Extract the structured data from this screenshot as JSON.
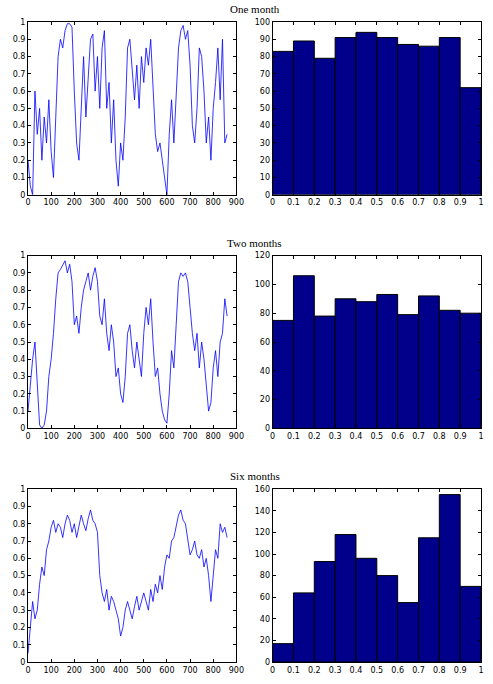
{
  "chart_data": [
    {
      "type": "line",
      "title": "One month",
      "x": [
        0,
        10,
        20,
        30,
        40,
        50,
        60,
        70,
        80,
        90,
        100,
        110,
        120,
        130,
        140,
        150,
        160,
        170,
        180,
        190,
        200,
        210,
        220,
        230,
        240,
        250,
        260,
        270,
        280,
        290,
        300,
        310,
        320,
        330,
        340,
        350,
        360,
        370,
        380,
        390,
        400,
        410,
        420,
        430,
        440,
        450,
        460,
        470,
        480,
        490,
        500,
        510,
        520,
        530,
        540,
        550,
        560,
        570,
        580,
        590,
        600,
        610,
        620,
        630,
        640,
        650,
        660,
        670,
        680,
        690,
        700,
        710,
        720,
        730,
        740,
        750,
        760,
        770,
        780,
        790,
        800,
        810,
        820,
        830,
        840,
        850,
        860
      ],
      "values": [
        0.2,
        0.05,
        0.0,
        0.6,
        0.35,
        0.5,
        0.2,
        0.45,
        0.3,
        0.55,
        0.25,
        0.1,
        0.45,
        0.8,
        0.9,
        0.85,
        0.95,
        0.99,
        0.99,
        0.97,
        0.6,
        0.3,
        0.2,
        0.55,
        0.8,
        0.45,
        0.7,
        0.9,
        0.93,
        0.6,
        0.8,
        0.5,
        0.85,
        0.95,
        0.5,
        0.65,
        0.3,
        0.55,
        0.2,
        0.05,
        0.3,
        0.2,
        0.45,
        0.85,
        0.9,
        0.7,
        0.55,
        0.75,
        0.5,
        0.8,
        0.65,
        0.85,
        0.75,
        0.9,
        0.6,
        0.35,
        0.25,
        0.3,
        0.2,
        0.1,
        0.0,
        0.35,
        0.55,
        0.3,
        0.6,
        0.85,
        0.95,
        0.98,
        0.9,
        0.95,
        0.75,
        0.4,
        0.3,
        0.5,
        0.85,
        0.8,
        0.6,
        0.3,
        0.45,
        0.2,
        0.5,
        0.65,
        0.85,
        0.55,
        0.9,
        0.3,
        0.35
      ],
      "color": "#0000ff",
      "xlim": [
        0,
        900
      ],
      "xticks": [
        0,
        100,
        200,
        300,
        400,
        500,
        600,
        700,
        800,
        900
      ],
      "ylim": [
        0,
        1
      ],
      "yticks": [
        0,
        0.1,
        0.2,
        0.3,
        0.4,
        0.5,
        0.6,
        0.7,
        0.8,
        0.9,
        1
      ]
    },
    {
      "type": "histogram",
      "bins": [
        0,
        0.1,
        0.2,
        0.3,
        0.4,
        0.5,
        0.6,
        0.7,
        0.8,
        0.9,
        1
      ],
      "values": [
        83,
        89,
        79,
        91,
        94,
        91,
        87,
        86,
        91,
        62
      ],
      "color": "#00008b",
      "xlim": [
        0,
        1
      ],
      "xticks": [
        0,
        0.1,
        0.2,
        0.3,
        0.4,
        0.5,
        0.6,
        0.7,
        0.8,
        0.9,
        1
      ],
      "ylim": [
        0,
        100
      ],
      "yticks": [
        0,
        10,
        20,
        30,
        40,
        50,
        60,
        70,
        80,
        90,
        100
      ]
    },
    {
      "type": "line",
      "title": "Two months",
      "x": [
        0,
        10,
        20,
        30,
        40,
        50,
        60,
        70,
        80,
        90,
        100,
        110,
        120,
        130,
        140,
        150,
        160,
        170,
        180,
        190,
        200,
        210,
        220,
        230,
        240,
        250,
        260,
        270,
        280,
        290,
        300,
        310,
        320,
        330,
        340,
        350,
        360,
        370,
        380,
        390,
        400,
        410,
        420,
        430,
        440,
        450,
        460,
        470,
        480,
        490,
        500,
        510,
        520,
        530,
        540,
        550,
        560,
        570,
        580,
        590,
        600,
        610,
        620,
        630,
        640,
        650,
        660,
        670,
        680,
        690,
        700,
        710,
        720,
        730,
        740,
        750,
        760,
        770,
        780,
        790,
        800,
        810,
        820,
        830,
        840,
        850,
        860
      ],
      "values": [
        0.1,
        0.25,
        0.4,
        0.5,
        0.25,
        0.02,
        0.0,
        0.02,
        0.1,
        0.3,
        0.4,
        0.55,
        0.75,
        0.9,
        0.92,
        0.95,
        0.97,
        0.9,
        0.95,
        0.85,
        0.6,
        0.65,
        0.55,
        0.7,
        0.8,
        0.85,
        0.9,
        0.8,
        0.88,
        0.93,
        0.85,
        0.65,
        0.6,
        0.75,
        0.55,
        0.45,
        0.6,
        0.5,
        0.3,
        0.35,
        0.2,
        0.15,
        0.3,
        0.55,
        0.6,
        0.45,
        0.35,
        0.5,
        0.4,
        0.3,
        0.55,
        0.7,
        0.6,
        0.75,
        0.5,
        0.3,
        0.35,
        0.2,
        0.1,
        0.05,
        0.03,
        0.2,
        0.45,
        0.35,
        0.6,
        0.85,
        0.9,
        0.88,
        0.9,
        0.85,
        0.7,
        0.55,
        0.45,
        0.55,
        0.35,
        0.5,
        0.4,
        0.25,
        0.1,
        0.15,
        0.35,
        0.45,
        0.3,
        0.5,
        0.55,
        0.75,
        0.65
      ],
      "color": "#0000ff",
      "xlim": [
        0,
        900
      ],
      "xticks": [
        0,
        100,
        200,
        300,
        400,
        500,
        600,
        700,
        800,
        900
      ],
      "ylim": [
        0,
        1
      ],
      "yticks": [
        0,
        0.1,
        0.2,
        0.3,
        0.4,
        0.5,
        0.6,
        0.7,
        0.8,
        0.9,
        1
      ]
    },
    {
      "type": "histogram",
      "bins": [
        0,
        0.1,
        0.2,
        0.3,
        0.4,
        0.5,
        0.6,
        0.7,
        0.8,
        0.9,
        1
      ],
      "values": [
        75,
        106,
        78,
        90,
        88,
        93,
        79,
        92,
        82,
        80
      ],
      "color": "#00008b",
      "xlim": [
        0,
        1
      ],
      "xticks": [
        0,
        0.1,
        0.2,
        0.3,
        0.4,
        0.5,
        0.6,
        0.7,
        0.8,
        0.9,
        1
      ],
      "ylim": [
        0,
        120
      ],
      "yticks": [
        0,
        20,
        40,
        60,
        80,
        100,
        120
      ]
    },
    {
      "type": "line",
      "title": "Six months",
      "x": [
        0,
        10,
        20,
        30,
        40,
        50,
        60,
        70,
        80,
        90,
        100,
        110,
        120,
        130,
        140,
        150,
        160,
        170,
        180,
        190,
        200,
        210,
        220,
        230,
        240,
        250,
        260,
        270,
        280,
        290,
        300,
        310,
        320,
        330,
        340,
        350,
        360,
        370,
        380,
        390,
        400,
        410,
        420,
        430,
        440,
        450,
        460,
        470,
        480,
        490,
        500,
        510,
        520,
        530,
        540,
        550,
        560,
        570,
        580,
        590,
        600,
        610,
        620,
        630,
        640,
        650,
        660,
        670,
        680,
        690,
        700,
        710,
        720,
        730,
        740,
        750,
        760,
        770,
        780,
        790,
        800,
        810,
        820,
        830,
        840,
        850,
        860
      ],
      "values": [
        0.05,
        0.2,
        0.35,
        0.25,
        0.3,
        0.45,
        0.55,
        0.5,
        0.65,
        0.7,
        0.78,
        0.82,
        0.75,
        0.8,
        0.78,
        0.72,
        0.8,
        0.85,
        0.82,
        0.75,
        0.8,
        0.72,
        0.78,
        0.85,
        0.8,
        0.76,
        0.83,
        0.88,
        0.82,
        0.8,
        0.75,
        0.5,
        0.4,
        0.35,
        0.42,
        0.3,
        0.38,
        0.35,
        0.3,
        0.25,
        0.15,
        0.2,
        0.3,
        0.35,
        0.3,
        0.25,
        0.32,
        0.38,
        0.3,
        0.35,
        0.4,
        0.35,
        0.3,
        0.42,
        0.35,
        0.45,
        0.4,
        0.5,
        0.42,
        0.55,
        0.62,
        0.6,
        0.7,
        0.72,
        0.78,
        0.85,
        0.88,
        0.82,
        0.8,
        0.7,
        0.62,
        0.65,
        0.7,
        0.62,
        0.6,
        0.65,
        0.55,
        0.6,
        0.5,
        0.35,
        0.5,
        0.65,
        0.6,
        0.8,
        0.75,
        0.78,
        0.72
      ],
      "color": "#0000ff",
      "xlim": [
        0,
        900
      ],
      "xticks": [
        0,
        100,
        200,
        300,
        400,
        500,
        600,
        700,
        800,
        900
      ],
      "ylim": [
        0,
        1
      ],
      "yticks": [
        0,
        0.1,
        0.2,
        0.3,
        0.4,
        0.5,
        0.6,
        0.7,
        0.8,
        0.9,
        1
      ]
    },
    {
      "type": "histogram",
      "bins": [
        0,
        0.1,
        0.2,
        0.3,
        0.4,
        0.5,
        0.6,
        0.7,
        0.8,
        0.9,
        1
      ],
      "values": [
        17,
        64,
        93,
        118,
        96,
        80,
        55,
        115,
        155,
        70
      ],
      "color": "#00008b",
      "xlim": [
        0,
        1
      ],
      "xticks": [
        0,
        0.1,
        0.2,
        0.3,
        0.4,
        0.5,
        0.6,
        0.7,
        0.8,
        0.9,
        1
      ],
      "ylim": [
        0,
        160
      ],
      "yticks": [
        0,
        20,
        40,
        60,
        80,
        100,
        120,
        140,
        160
      ]
    }
  ]
}
